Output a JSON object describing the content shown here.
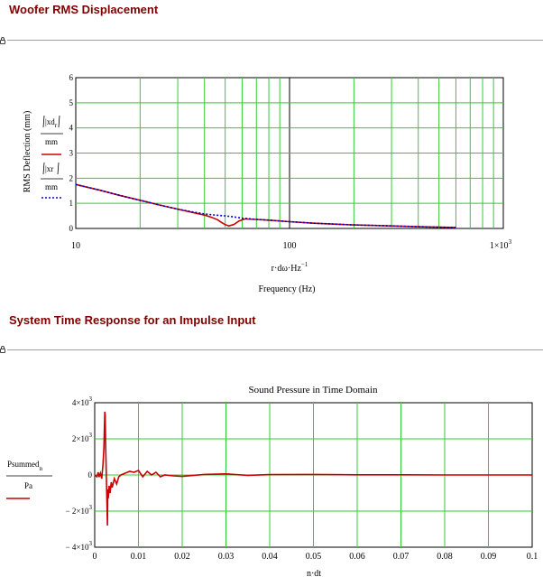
{
  "sections": [
    {
      "heading": "Woofer RMS Displacement"
    },
    {
      "heading": "System Time Response for an Impulse Input"
    }
  ],
  "chart_data": [
    {
      "type": "line",
      "title": "",
      "xscale": "log",
      "xlim": [
        10,
        1000
      ],
      "ylim": [
        0,
        6
      ],
      "xticks": [
        "10",
        "100",
        "1×10"
      ],
      "xtick_sup": "3",
      "yticks": [
        "0",
        "1",
        "2",
        "3",
        "4",
        "5",
        "6"
      ],
      "xlabel_expr": "r·dω·Hz",
      "xlabel_sup": "−1",
      "xlabel": "Frequency (Hz)",
      "ylabel": "RMS Deflection (mm)",
      "legend": [
        {
          "top": "|xd",
          "sub": "r",
          "bottom": "mm",
          "style": "solid",
          "color": "#cc0000"
        },
        {
          "top": "|xr",
          "sub": "",
          "bottom": "mm",
          "style": "dotted",
          "color": "#0000cc"
        }
      ],
      "series": [
        {
          "style": "solid",
          "color": "#cc0000",
          "x": [
            10,
            13,
            16,
            20,
            25,
            30,
            35,
            40,
            43,
            46,
            48,
            50,
            52,
            55,
            58,
            62,
            70,
            80,
            100,
            130,
            200,
            300,
            400,
            500,
            600
          ],
          "y": [
            1.75,
            1.52,
            1.32,
            1.12,
            0.92,
            0.77,
            0.64,
            0.53,
            0.45,
            0.35,
            0.24,
            0.15,
            0.1,
            0.16,
            0.3,
            0.38,
            0.36,
            0.33,
            0.27,
            0.21,
            0.14,
            0.1,
            0.07,
            0.05,
            0.04
          ]
        },
        {
          "style": "dotted",
          "color": "#0000cc",
          "x": [
            10,
            13,
            16,
            20,
            25,
            30,
            35,
            40,
            45,
            50,
            55,
            60,
            70,
            80,
            100,
            130,
            200,
            300,
            400,
            500,
            600
          ],
          "y": [
            1.75,
            1.52,
            1.32,
            1.12,
            0.92,
            0.77,
            0.66,
            0.58,
            0.53,
            0.5,
            0.46,
            0.41,
            0.36,
            0.33,
            0.27,
            0.21,
            0.14,
            0.1,
            0.07,
            0.05,
            0.04
          ]
        }
      ]
    },
    {
      "type": "line",
      "title": "Sound Pressure in Time Domain",
      "xlim": [
        0,
        0.1
      ],
      "ylim": [
        -4000,
        4000
      ],
      "xticks": [
        "0",
        "0.01",
        "0.02",
        "0.03",
        "0.04",
        "0.05",
        "0.06",
        "0.07",
        "0.08",
        "0.09",
        "0.1"
      ],
      "yticks": [
        {
          "m": "− 4×10",
          "e": "3"
        },
        {
          "m": "− 2×10",
          "e": "3"
        },
        {
          "m": "0",
          "e": ""
        },
        {
          "m": "2×10",
          "e": "3"
        },
        {
          "m": "4×10",
          "e": "3"
        }
      ],
      "xlabel_expr": "n·dt",
      "legend": [
        {
          "top": "Psummed",
          "sub": "n",
          "bottom": "Pa",
          "style": "solid",
          "color": "#cc0000"
        }
      ],
      "series": [
        {
          "style": "solid",
          "color": "#cc0000",
          "x": [
            0,
            0.0005,
            0.0008,
            0.001,
            0.0013,
            0.0016,
            0.0019,
            0.0021,
            0.0023,
            0.0024,
            0.0025,
            0.0027,
            0.0029,
            0.003,
            0.0031,
            0.0033,
            0.0035,
            0.0038,
            0.004,
            0.0045,
            0.005,
            0.0055,
            0.006,
            0.007,
            0.008,
            0.009,
            0.01,
            0.011,
            0.012,
            0.013,
            0.014,
            0.015,
            0.016,
            0.018,
            0.02,
            0.025,
            0.03,
            0.035,
            0.04,
            0.05,
            0.06,
            0.07,
            0.08,
            0.09,
            0.1
          ],
          "y": [
            0,
            -100,
            150,
            -120,
            100,
            -200,
            600,
            1500,
            3500,
            3300,
            1700,
            -500,
            -2800,
            -800,
            -1300,
            -600,
            -1000,
            -400,
            -700,
            -200,
            -500,
            -100,
            0,
            100,
            200,
            150,
            250,
            -100,
            200,
            0,
            150,
            -100,
            0,
            -50,
            -80,
            30,
            60,
            -20,
            20,
            30,
            10,
            10,
            0,
            0,
            0
          ]
        }
      ]
    }
  ]
}
